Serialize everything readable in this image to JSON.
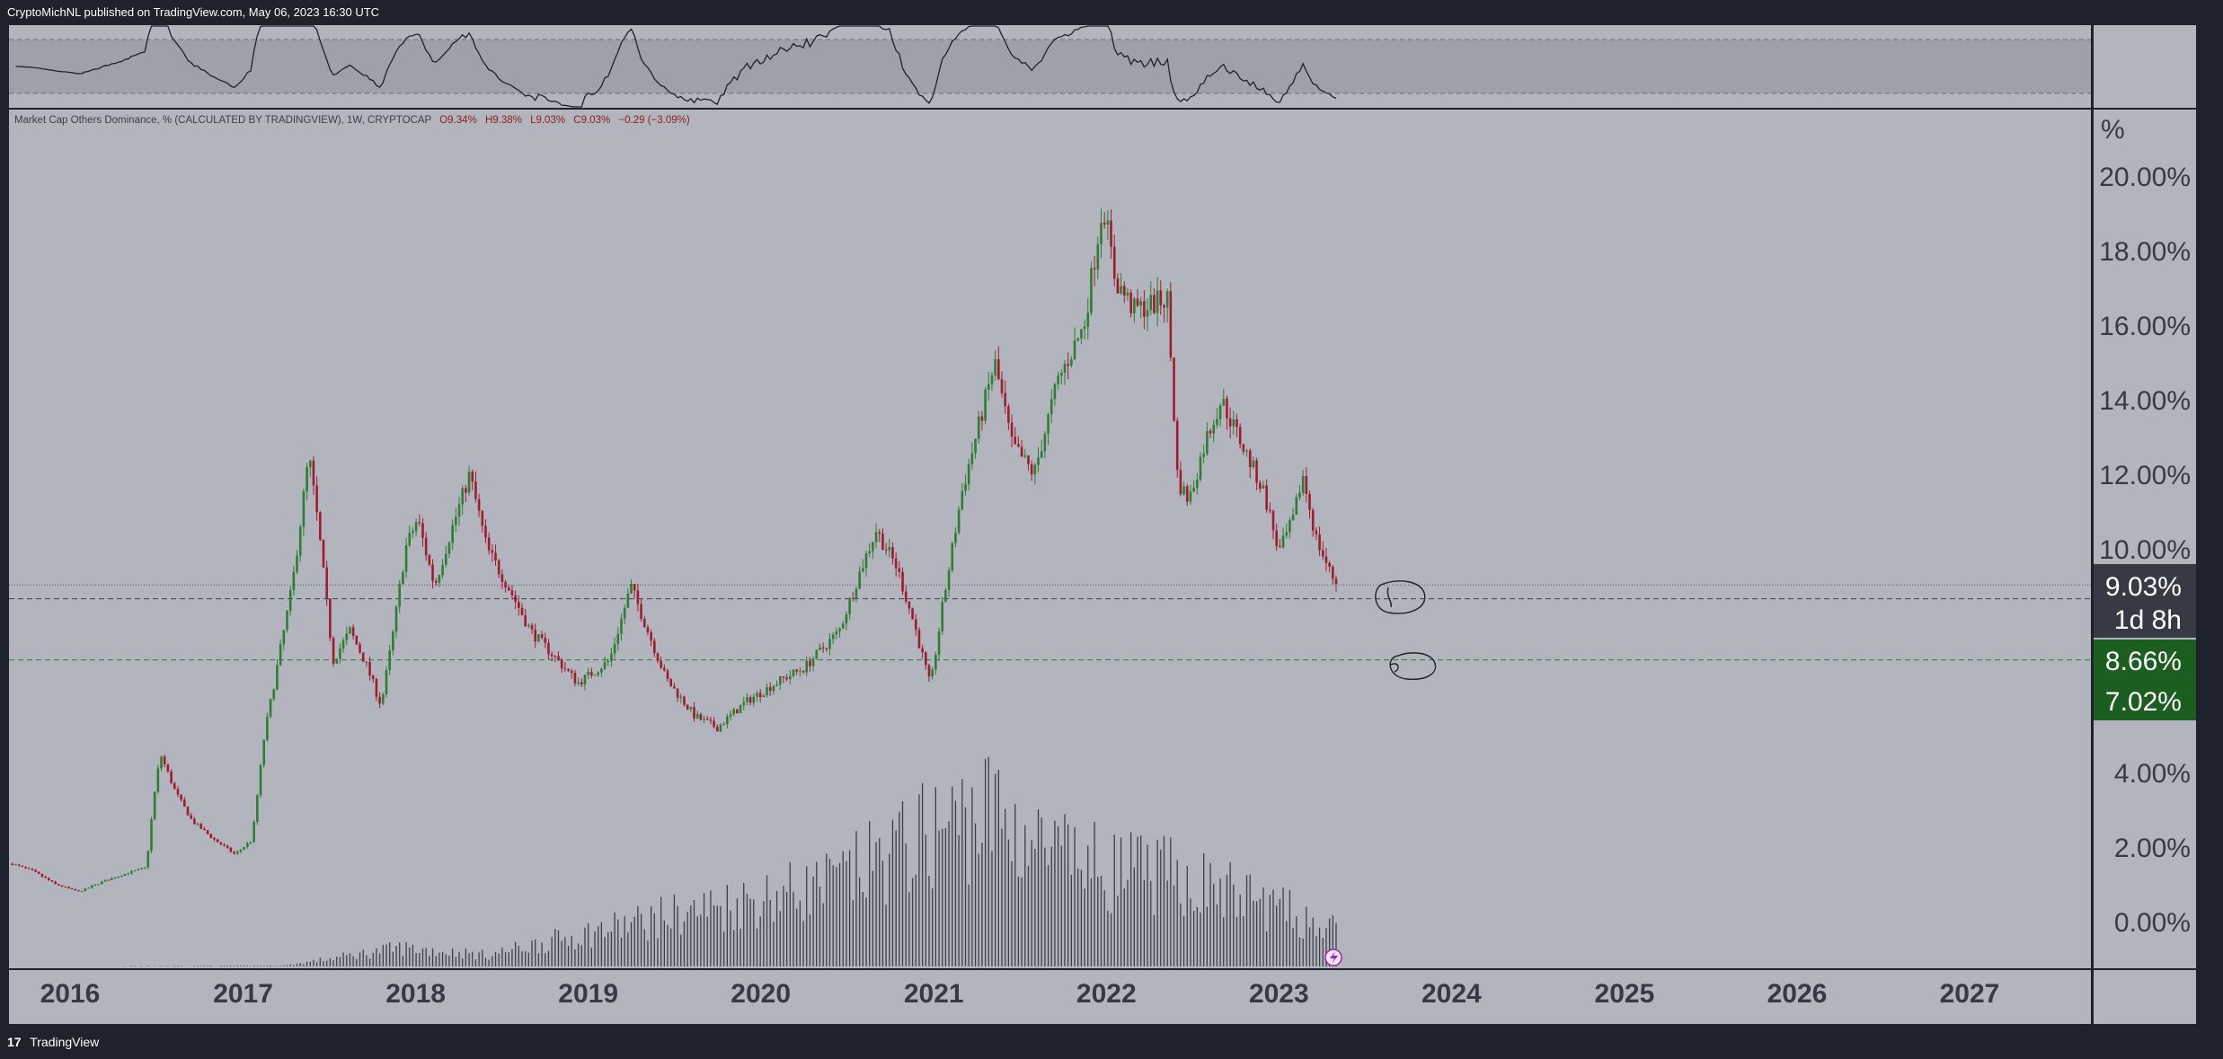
{
  "header": {
    "published_text": "CryptoMichNL published on TradingView.com, May 06, 2023 16:30 UTC"
  },
  "footer": {
    "brand": "TradingView",
    "logo_glyph": "17"
  },
  "legend": {
    "title": "Market Cap Others Dominance, % (CALCULATED BY TRADINGVIEW), 1W, CRYPTOCAP",
    "open": "O9.34%",
    "high": "H9.38%",
    "low": "L9.03%",
    "close": "C9.03%",
    "change": "−0.29 (−3.09%)"
  },
  "axis_unit": "%",
  "price_tags": {
    "current": "9.03%",
    "countdown": "1d 8h",
    "level_a": "8.66%",
    "level_b": "7.02%"
  },
  "colors": {
    "background": "#b2b5be",
    "frame": "#1e222d",
    "up": "#2e7d32",
    "down": "#a01c2c",
    "volume": "#3c3f48",
    "tag_dark": "#363a45",
    "tag_green": "#1b5e20"
  },
  "chart_data": {
    "type": "candlestick",
    "interval": "1W",
    "y_axis": {
      "unit": "%",
      "ticks": [
        "20.00%",
        "18.00%",
        "16.00%",
        "14.00%",
        "12.00%",
        "10.00%",
        "4.00%",
        "2.00%",
        "0.00%"
      ],
      "range": [
        -1.3,
        21.7
      ]
    },
    "x_axis": {
      "ticks": [
        "2016",
        "2017",
        "2018",
        "2019",
        "2020",
        "2021",
        "2022",
        "2023",
        "2024",
        "2025",
        "2026",
        "2027"
      ]
    },
    "price_path": [
      [
        "2015-09-01",
        1.55
      ],
      [
        "2015-10-15",
        1.35
      ],
      [
        "2015-12-01",
        1.0
      ],
      [
        "2016-01-20",
        0.8
      ],
      [
        "2016-03-15",
        1.1
      ],
      [
        "2016-05-01",
        1.3
      ],
      [
        "2016-06-10",
        1.45
      ],
      [
        "2016-06-25",
        3.2
      ],
      [
        "2016-07-10",
        4.5
      ],
      [
        "2016-08-10",
        3.5
      ],
      [
        "2016-09-15",
        2.7
      ],
      [
        "2016-11-01",
        2.2
      ],
      [
        "2016-12-15",
        1.8
      ],
      [
        "2017-01-20",
        2.2
      ],
      [
        "2017-02-15",
        5.0
      ],
      [
        "2017-03-15",
        6.9
      ],
      [
        "2017-04-15",
        9.0
      ],
      [
        "2017-05-20",
        12.5
      ],
      [
        "2017-06-10",
        10.5
      ],
      [
        "2017-07-10",
        7.0
      ],
      [
        "2017-08-15",
        7.8
      ],
      [
        "2017-09-15",
        7.0
      ],
      [
        "2017-10-20",
        5.8
      ],
      [
        "2017-11-15",
        7.8
      ],
      [
        "2017-12-10",
        10.0
      ],
      [
        "2018-01-05",
        10.8
      ],
      [
        "2018-02-10",
        9.0
      ],
      [
        "2018-03-10",
        10.2
      ],
      [
        "2018-04-25",
        12.0
      ],
      [
        "2018-06-01",
        10.0
      ],
      [
        "2018-07-15",
        9.0
      ],
      [
        "2018-09-01",
        7.8
      ],
      [
        "2018-10-15",
        7.2
      ],
      [
        "2018-12-10",
        6.4
      ],
      [
        "2019-02-15",
        7.0
      ],
      [
        "2019-04-01",
        9.0
      ],
      [
        "2019-05-01",
        8.0
      ],
      [
        "2019-06-15",
        6.5
      ],
      [
        "2019-08-15",
        5.5
      ],
      [
        "2019-10-01",
        5.2
      ],
      [
        "2019-12-01",
        5.9
      ],
      [
        "2020-02-15",
        6.5
      ],
      [
        "2020-04-01",
        6.8
      ],
      [
        "2020-06-15",
        7.8
      ],
      [
        "2020-08-01",
        9.5
      ],
      [
        "2020-09-01",
        10.5
      ],
      [
        "2020-10-15",
        9.5
      ],
      [
        "2020-11-20",
        8.0
      ],
      [
        "2020-12-25",
        6.3
      ],
      [
        "2021-01-20",
        8.5
      ],
      [
        "2021-03-01",
        11.5
      ],
      [
        "2021-05-10",
        15.0
      ],
      [
        "2021-06-15",
        12.8
      ],
      [
        "2021-08-01",
        12.0
      ],
      [
        "2021-09-20",
        14.5
      ],
      [
        "2021-11-15",
        16.0
      ],
      [
        "2021-12-25",
        19.3
      ],
      [
        "2022-01-20",
        17.2
      ],
      [
        "2022-03-01",
        16.4
      ],
      [
        "2022-05-10",
        16.7
      ],
      [
        "2022-06-01",
        11.8
      ],
      [
        "2022-06-25",
        11.3
      ],
      [
        "2022-08-01",
        13.0
      ],
      [
        "2022-09-01",
        14.0
      ],
      [
        "2022-10-15",
        12.8
      ],
      [
        "2022-12-01",
        11.5
      ],
      [
        "2023-01-01",
        9.9
      ],
      [
        "2023-02-01",
        10.8
      ],
      [
        "2023-02-20",
        12.0
      ],
      [
        "2023-03-20",
        10.3
      ],
      [
        "2023-04-20",
        9.34
      ],
      [
        "2023-05-06",
        9.03
      ]
    ],
    "volume_profile": [
      [
        "2015-09-01",
        0.0
      ],
      [
        "2017-04-01",
        0.02
      ],
      [
        "2017-12-01",
        0.5
      ],
      [
        "2018-06-01",
        0.3
      ],
      [
        "2019-06-01",
        1.3
      ],
      [
        "2020-06-01",
        2.2
      ],
      [
        "2021-01-01",
        3.6
      ],
      [
        "2021-05-01",
        4.2
      ],
      [
        "2021-09-01",
        3.0
      ],
      [
        "2022-01-01",
        2.6
      ],
      [
        "2022-06-01",
        2.4
      ],
      [
        "2022-12-01",
        1.7
      ],
      [
        "2023-05-06",
        0.9
      ]
    ],
    "indicator_band": [
      30,
      70
    ],
    "horizontal_lines": [
      {
        "value": 9.03,
        "style": "dotted"
      },
      {
        "value": 8.66,
        "style": "dashed"
      },
      {
        "value": 7.02,
        "style": "dashed"
      }
    ]
  }
}
